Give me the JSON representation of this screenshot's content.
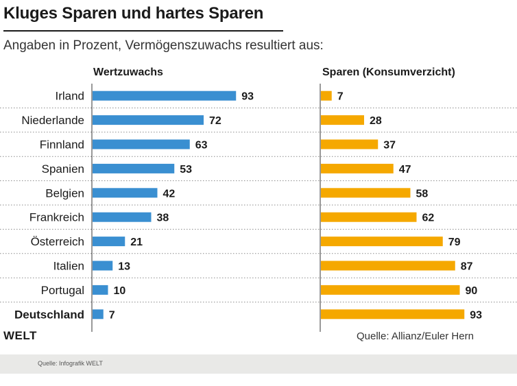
{
  "header": {
    "title": "Kluges Sparen und hartes Sparen",
    "subtitle": "Angaben in Prozent, Vermögenszuwachs resultiert aus:"
  },
  "chart_data": {
    "type": "bar",
    "orientation": "horizontal",
    "categories": [
      "Irland",
      "Niederlande",
      "Finnland",
      "Spanien",
      "Belgien",
      "Frankreich",
      "Österreich",
      "Italien",
      "Portugal",
      "Deutschland"
    ],
    "highlight_category": "Deutschland",
    "series": [
      {
        "name": "Wertzuwachs",
        "color": "#3a8fd1",
        "values": [
          93,
          72,
          63,
          53,
          42,
          38,
          21,
          13,
          10,
          7
        ]
      },
      {
        "name": "Sparen (Konsumverzicht)",
        "color": "#f5a800",
        "values": [
          7,
          28,
          37,
          47,
          58,
          62,
          79,
          87,
          90,
          93
        ]
      }
    ],
    "xlim": [
      0,
      100
    ],
    "unit": "%"
  },
  "footer": {
    "logo": "WELT",
    "source": "Quelle: Allianz/Euler Hern",
    "credit": "Quelle: Infografik WELT"
  }
}
